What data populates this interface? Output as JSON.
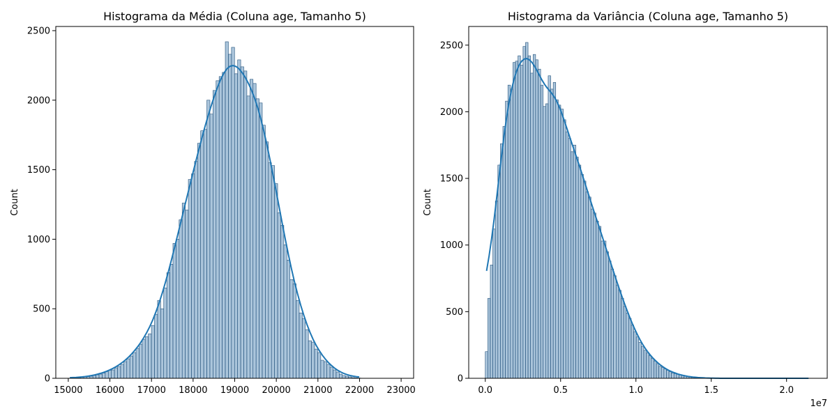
{
  "chart_data": [
    {
      "type": "bar",
      "title": "Histograma da Média (Coluna age, Tamanho 5)",
      "xlabel": "",
      "ylabel": "Count",
      "xlim": [
        14700,
        23300
      ],
      "ylim": [
        0,
        2530
      ],
      "xticks": [
        15000,
        16000,
        17000,
        18000,
        19000,
        20000,
        21000,
        22000,
        23000
      ],
      "yticks": [
        0,
        500,
        1000,
        1500,
        2000,
        2500
      ],
      "kde": true,
      "grid": false,
      "bar_color": "#8fb2cf",
      "line_color": "#1f77b4",
      "bins": {
        "x0": 15000,
        "width": 74,
        "counts": [
          0,
          2,
          3,
          5,
          8,
          10,
          12,
          15,
          20,
          25,
          30,
          38,
          48,
          58,
          60,
          75,
          85,
          100,
          120,
          140,
          160,
          185,
          215,
          245,
          280,
          300,
          320,
          380,
          460,
          560,
          500,
          650,
          760,
          820,
          970,
          1000,
          1140,
          1260,
          1210,
          1430,
          1470,
          1560,
          1690,
          1780,
          1790,
          2000,
          1900,
          2070,
          2140,
          2170,
          2200,
          2420,
          2330,
          2380,
          2190,
          2290,
          2240,
          2210,
          2030,
          2150,
          2120,
          2010,
          1980,
          1820,
          1700,
          1550,
          1530,
          1400,
          1190,
          1100,
          960,
          850,
          710,
          680,
          560,
          470,
          430,
          350,
          270,
          260,
          210,
          185,
          130,
          120,
          100,
          80,
          60,
          45,
          30,
          20,
          15,
          10,
          5,
          3,
          2
        ]
      }
    },
    {
      "type": "bar",
      "title": "Histograma da Variância (Coluna age, Tamanho 5)",
      "xlabel": "",
      "ylabel": "Count",
      "axis_offset_label": "1e7",
      "xlim": [
        -1100000,
        22700000
      ],
      "ylim": [
        0,
        2640
      ],
      "xticks": [
        0,
        5000000,
        10000000,
        15000000,
        20000000
      ],
      "xtick_labels": [
        "0.0",
        "0.5",
        "1.0",
        "1.5",
        "2.0"
      ],
      "yticks": [
        0,
        500,
        1000,
        1500,
        2000,
        2500
      ],
      "kde": true,
      "grid": false,
      "bar_color": "#8fb2cf",
      "line_color": "#1f77b4",
      "bins": {
        "x0": 0,
        "width": 167000,
        "counts": [
          200,
          600,
          850,
          1120,
          1330,
          1600,
          1760,
          1890,
          2080,
          2200,
          2170,
          2370,
          2380,
          2420,
          2350,
          2490,
          2520,
          2420,
          2290,
          2430,
          2390,
          2320,
          2200,
          2040,
          2060,
          2270,
          2170,
          2220,
          2090,
          2050,
          2020,
          1940,
          1850,
          1800,
          1700,
          1750,
          1660,
          1600,
          1530,
          1480,
          1400,
          1360,
          1270,
          1240,
          1180,
          1140,
          1030,
          1030,
          950,
          880,
          820,
          770,
          700,
          660,
          600,
          540,
          490,
          450,
          400,
          350,
          310,
          270,
          240,
          210,
          190,
          170,
          150,
          130,
          110,
          90,
          80,
          70,
          60,
          50,
          40,
          35,
          30,
          25,
          20,
          15,
          12,
          10,
          8,
          6,
          5,
          4,
          3,
          2,
          1,
          1,
          1,
          0,
          0,
          0,
          0,
          0,
          0,
          0,
          0,
          0,
          0,
          0,
          0,
          0,
          0,
          0,
          0,
          0,
          0,
          0,
          0,
          0,
          0,
          0,
          0,
          0,
          0,
          0,
          0,
          0,
          0,
          0,
          0,
          0,
          0,
          0,
          0,
          0,
          0
        ]
      }
    }
  ]
}
